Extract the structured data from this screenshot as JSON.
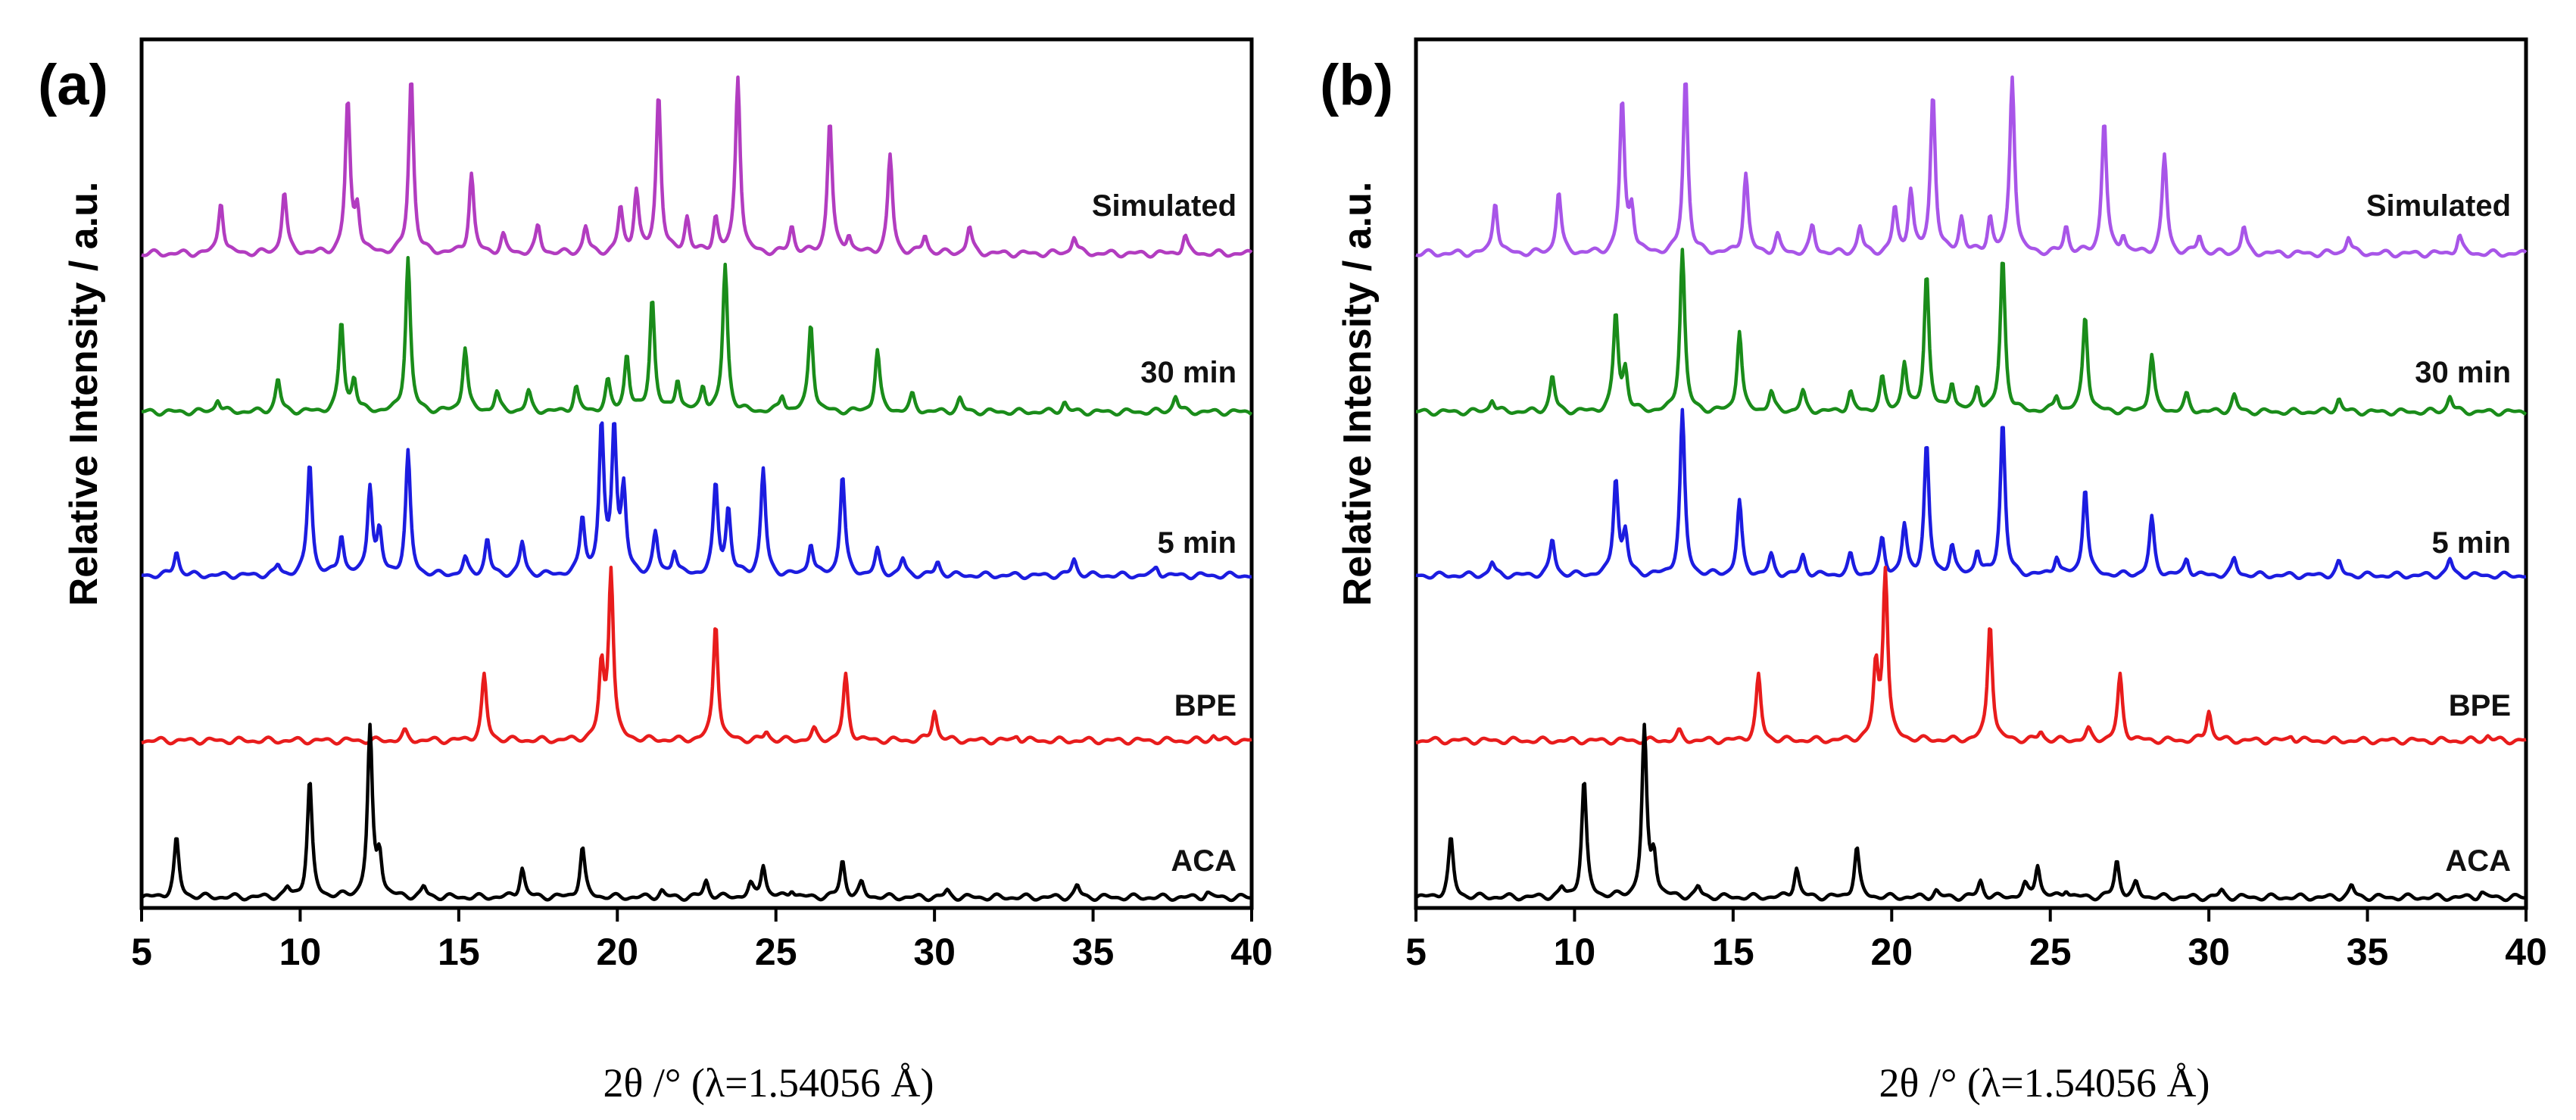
{
  "colors": {
    "Simulated_a": "#b23cc0",
    "Simulated_b": "#a855e8",
    "30 min": "#1a8c1a",
    "5 min": "#1c1ce0",
    "BPE": "#e81c1c",
    "ACA": "#000000"
  },
  "chart_data": [
    {
      "type": "line",
      "panel_label": "(a)",
      "xlabel": "2θ /° (λ=1.54056 Å)",
      "ylabel": "Relative Intensity / a.u.",
      "xlim": [
        5,
        40
      ],
      "xticks": [
        5,
        10,
        15,
        20,
        25,
        30,
        35,
        40
      ],
      "yticks": false,
      "offset_stacked": true,
      "series": [
        {
          "name": "Simulated",
          "color_key": "Simulated_a",
          "peaks": [
            [
              7.5,
              0.3
            ],
            [
              9.5,
              0.35
            ],
            [
              11.5,
              0.85
            ],
            [
              11.8,
              0.25
            ],
            [
              13.5,
              1.0
            ],
            [
              15.4,
              0.45
            ],
            [
              16.4,
              0.1
            ],
            [
              17.5,
              0.15
            ],
            [
              19.0,
              0.15
            ],
            [
              20.1,
              0.25
            ],
            [
              20.6,
              0.35
            ],
            [
              21.3,
              0.9
            ],
            [
              22.2,
              0.2
            ],
            [
              23.1,
              0.2
            ],
            [
              23.8,
              1.0
            ],
            [
              25.5,
              0.15
            ],
            [
              26.7,
              0.75
            ],
            [
              27.3,
              0.1
            ],
            [
              28.6,
              0.55
            ],
            [
              29.7,
              0.1
            ],
            [
              31.1,
              0.15
            ],
            [
              34.4,
              0.1
            ],
            [
              37.9,
              0.1
            ]
          ]
        },
        {
          "name": "30 min",
          "color_key": "30 min",
          "peaks": [
            [
              7.4,
              0.08
            ],
            [
              9.3,
              0.2
            ],
            [
              11.3,
              0.55
            ],
            [
              11.7,
              0.2
            ],
            [
              13.4,
              0.95
            ],
            [
              15.2,
              0.4
            ],
            [
              16.2,
              0.12
            ],
            [
              17.2,
              0.12
            ],
            [
              18.7,
              0.15
            ],
            [
              19.7,
              0.18
            ],
            [
              20.3,
              0.35
            ],
            [
              21.1,
              0.7
            ],
            [
              21.9,
              0.2
            ],
            [
              22.7,
              0.15
            ],
            [
              23.4,
              0.9
            ],
            [
              25.2,
              0.1
            ],
            [
              26.1,
              0.55
            ],
            [
              28.2,
              0.38
            ],
            [
              29.3,
              0.1
            ],
            [
              30.8,
              0.08
            ],
            [
              34.1,
              0.06
            ],
            [
              37.6,
              0.1
            ]
          ]
        },
        {
          "name": "5 min",
          "color_key": "5 min",
          "peaks": [
            [
              6.1,
              0.15
            ],
            [
              9.3,
              0.06
            ],
            [
              10.3,
              0.7
            ],
            [
              11.3,
              0.25
            ],
            [
              12.2,
              0.55
            ],
            [
              12.5,
              0.25
            ],
            [
              13.4,
              0.75
            ],
            [
              15.2,
              0.1
            ],
            [
              15.9,
              0.22
            ],
            [
              17.0,
              0.2
            ],
            [
              18.9,
              0.35
            ],
            [
              19.5,
              0.9
            ],
            [
              19.9,
              0.9
            ],
            [
              20.2,
              0.5
            ],
            [
              21.2,
              0.25
            ],
            [
              21.8,
              0.15
            ],
            [
              23.1,
              0.55
            ],
            [
              23.5,
              0.4
            ],
            [
              24.6,
              0.65
            ],
            [
              26.1,
              0.2
            ],
            [
              27.1,
              0.62
            ],
            [
              28.2,
              0.15
            ],
            [
              29.0,
              0.1
            ],
            [
              30.1,
              0.08
            ],
            [
              34.4,
              0.1
            ],
            [
              37.0,
              0.05
            ]
          ]
        },
        {
          "name": "BPE",
          "color_key": "BPE",
          "peaks": [
            [
              13.3,
              0.05
            ],
            [
              15.8,
              0.38
            ],
            [
              19.5,
              0.42
            ],
            [
              19.8,
              1.0
            ],
            [
              23.1,
              0.7
            ],
            [
              24.7,
              0.05
            ],
            [
              26.2,
              0.06
            ],
            [
              27.2,
              0.38
            ],
            [
              30.0,
              0.18
            ],
            [
              32.6,
              0.03
            ],
            [
              38.8,
              0.03
            ]
          ]
        },
        {
          "name": "ACA",
          "color_key": "ACA",
          "peaks": [
            [
              6.1,
              0.35
            ],
            [
              9.6,
              0.05
            ],
            [
              10.3,
              0.7
            ],
            [
              12.2,
              1.0
            ],
            [
              12.5,
              0.25
            ],
            [
              13.9,
              0.06
            ],
            [
              17.0,
              0.18
            ],
            [
              18.9,
              0.3
            ],
            [
              21.4,
              0.04
            ],
            [
              22.8,
              0.1
            ],
            [
              24.2,
              0.07
            ],
            [
              24.6,
              0.2
            ],
            [
              25.5,
              0.05
            ],
            [
              27.1,
              0.22
            ],
            [
              27.7,
              0.08
            ],
            [
              30.4,
              0.04
            ],
            [
              34.5,
              0.07
            ],
            [
              38.6,
              0.03
            ]
          ]
        }
      ]
    },
    {
      "type": "line",
      "panel_label": "(b)",
      "xlabel": "2θ /° (λ=1.54056 Å)",
      "ylabel": "Relative Intensity / a.u.",
      "xlim": [
        5,
        40
      ],
      "xticks": [
        5,
        10,
        15,
        20,
        25,
        30,
        35,
        40
      ],
      "yticks": false,
      "offset_stacked": true,
      "series": [
        {
          "name": "Simulated",
          "color_key": "Simulated_b",
          "peaks": [
            [
              7.5,
              0.3
            ],
            [
              9.5,
              0.35
            ],
            [
              11.5,
              0.85
            ],
            [
              11.8,
              0.25
            ],
            [
              13.5,
              1.0
            ],
            [
              15.4,
              0.45
            ],
            [
              16.4,
              0.1
            ],
            [
              17.5,
              0.15
            ],
            [
              19.0,
              0.15
            ],
            [
              20.1,
              0.25
            ],
            [
              20.6,
              0.35
            ],
            [
              21.3,
              0.9
            ],
            [
              22.2,
              0.2
            ],
            [
              23.1,
              0.2
            ],
            [
              23.8,
              1.0
            ],
            [
              25.5,
              0.15
            ],
            [
              26.7,
              0.75
            ],
            [
              27.3,
              0.1
            ],
            [
              28.6,
              0.55
            ],
            [
              29.7,
              0.1
            ],
            [
              31.1,
              0.15
            ],
            [
              34.4,
              0.1
            ],
            [
              37.9,
              0.1
            ]
          ]
        },
        {
          "name": "30 min",
          "color_key": "30 min",
          "peaks": [
            [
              7.4,
              0.08
            ],
            [
              9.3,
              0.22
            ],
            [
              11.3,
              0.6
            ],
            [
              11.6,
              0.25
            ],
            [
              13.4,
              1.0
            ],
            [
              15.2,
              0.5
            ],
            [
              16.2,
              0.12
            ],
            [
              17.2,
              0.12
            ],
            [
              18.7,
              0.12
            ],
            [
              19.7,
              0.2
            ],
            [
              20.4,
              0.3
            ],
            [
              21.1,
              0.85
            ],
            [
              21.9,
              0.18
            ],
            [
              22.7,
              0.15
            ],
            [
              23.5,
              0.95
            ],
            [
              25.2,
              0.1
            ],
            [
              26.1,
              0.6
            ],
            [
              28.2,
              0.35
            ],
            [
              29.3,
              0.1
            ],
            [
              30.8,
              0.1
            ],
            [
              34.1,
              0.08
            ],
            [
              37.6,
              0.1
            ]
          ]
        },
        {
          "name": "5 min",
          "color_key": "5 min",
          "peaks": [
            [
              7.4,
              0.08
            ],
            [
              9.3,
              0.22
            ],
            [
              11.3,
              0.6
            ],
            [
              11.6,
              0.25
            ],
            [
              13.4,
              1.0
            ],
            [
              15.2,
              0.45
            ],
            [
              16.2,
              0.12
            ],
            [
              17.2,
              0.12
            ],
            [
              18.7,
              0.12
            ],
            [
              19.7,
              0.22
            ],
            [
              20.4,
              0.3
            ],
            [
              21.1,
              0.8
            ],
            [
              21.9,
              0.18
            ],
            [
              22.7,
              0.15
            ],
            [
              23.5,
              0.95
            ],
            [
              25.2,
              0.12
            ],
            [
              26.1,
              0.55
            ],
            [
              28.2,
              0.35
            ],
            [
              29.3,
              0.1
            ],
            [
              30.8,
              0.1
            ],
            [
              34.1,
              0.08
            ],
            [
              37.6,
              0.1
            ]
          ]
        },
        {
          "name": "BPE",
          "color_key": "BPE",
          "peaks": [
            [
              13.3,
              0.05
            ],
            [
              15.8,
              0.38
            ],
            [
              19.5,
              0.42
            ],
            [
              19.8,
              1.0
            ],
            [
              23.1,
              0.7
            ],
            [
              24.7,
              0.05
            ],
            [
              26.2,
              0.06
            ],
            [
              27.2,
              0.38
            ],
            [
              30.0,
              0.18
            ],
            [
              32.6,
              0.03
            ],
            [
              38.8,
              0.03
            ]
          ]
        },
        {
          "name": "ACA",
          "color_key": "ACA",
          "peaks": [
            [
              6.1,
              0.35
            ],
            [
              9.6,
              0.05
            ],
            [
              10.3,
              0.7
            ],
            [
              12.2,
              1.0
            ],
            [
              12.5,
              0.25
            ],
            [
              13.9,
              0.06
            ],
            [
              17.0,
              0.18
            ],
            [
              18.9,
              0.3
            ],
            [
              21.4,
              0.04
            ],
            [
              22.8,
              0.1
            ],
            [
              24.2,
              0.07
            ],
            [
              24.6,
              0.2
            ],
            [
              25.5,
              0.05
            ],
            [
              27.1,
              0.22
            ],
            [
              27.7,
              0.08
            ],
            [
              30.4,
              0.04
            ],
            [
              34.5,
              0.07
            ],
            [
              38.6,
              0.03
            ]
          ]
        }
      ]
    }
  ]
}
